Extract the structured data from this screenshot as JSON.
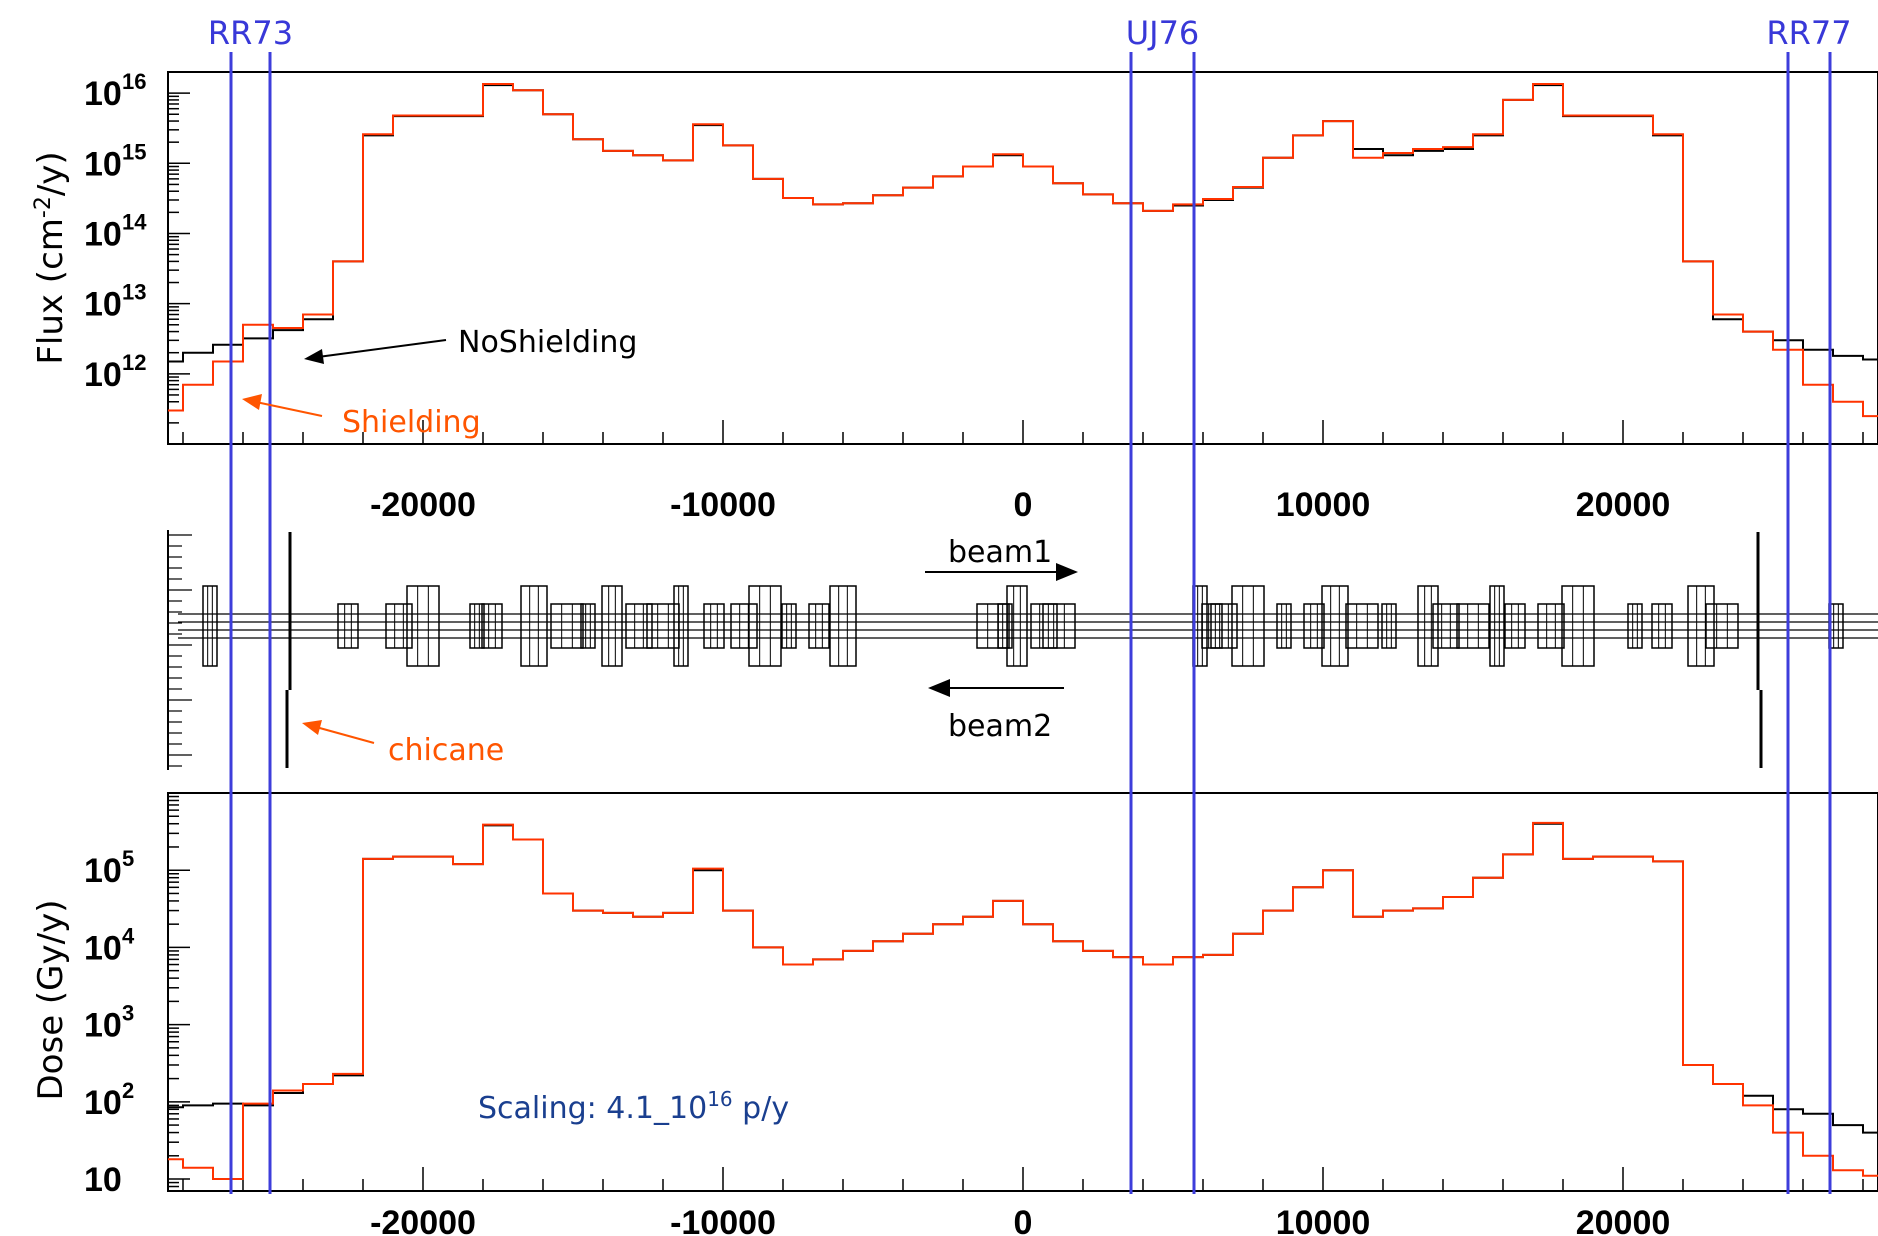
{
  "colors": {
    "no_shielding": "#000000",
    "shielding": "#ff3300",
    "region_lines": "#3d3ddb",
    "annotation_shielding": "#ff5500",
    "annotation_scaling": "#1a3f8f"
  },
  "regions": [
    {
      "label": "RR73",
      "x_from": -26400,
      "x_to": -25100
    },
    {
      "label": "UJ76",
      "x_from": 3600,
      "x_to": 5700
    },
    {
      "label": "RR77",
      "x_from": 25500,
      "x_to": 26900
    }
  ],
  "annotations": {
    "no_shielding": "NoShielding",
    "shielding": "Shielding",
    "chicane": "chicane",
    "beam1": "beam1",
    "beam2": "beam2",
    "scaling_prefix": "Scaling: 4.1_10",
    "scaling_exponent": "16",
    "scaling_suffix": " p/y"
  },
  "chart_data": [
    {
      "type": "line",
      "title": "",
      "ylabel": "Flux (cm",
      "ylabel_sup": "-2",
      "ylabel_end": "/y)",
      "xlabel": "",
      "yscale": "log",
      "xlim": [
        -28500,
        28500
      ],
      "ylim": [
        100000000000.0,
        2e+16
      ],
      "x_ticks": [
        -20000,
        -10000,
        0,
        10000,
        20000
      ],
      "y_ticks": [
        {
          "base": "10",
          "exp": "16",
          "value": 1e+16
        },
        {
          "base": "10",
          "exp": "15",
          "value": 1000000000000000.0
        },
        {
          "base": "10",
          "exp": "14",
          "value": 100000000000000.0
        },
        {
          "base": "10",
          "exp": "13",
          "value": 10000000000000.0
        },
        {
          "base": "10",
          "exp": "12",
          "value": 1000000000000.0
        }
      ],
      "series": [
        {
          "key": "no_shielding",
          "x": [
            -28500,
            -27500,
            -26500,
            -25500,
            -24500,
            -23500,
            -22500,
            -21500,
            -20500,
            -19500,
            -18500,
            -17500,
            -16500,
            -15500,
            -14500,
            -13500,
            -12500,
            -11500,
            -10500,
            -9500,
            -8500,
            -7500,
            -6500,
            -5500,
            -4500,
            -3500,
            -2500,
            -1500,
            -500,
            500,
            1500,
            2500,
            3500,
            4500,
            5500,
            6500,
            7500,
            8500,
            9500,
            10500,
            11500,
            12500,
            13500,
            14500,
            15500,
            16500,
            17500,
            18500,
            19500,
            20500,
            21500,
            22500,
            23500,
            24500,
            25500,
            26500,
            27500,
            28500
          ],
          "y": [
            1500000000000.0,
            2000000000000.0,
            2600000000000.0,
            3200000000000.0,
            4200000000000.0,
            6000000000000.0,
            40000000000000.0,
            2500000000000000.0,
            4700000000000000.0,
            4700000000000000.0,
            4700000000000000.0,
            1.3e+16,
            1.1e+16,
            5000000000000000.0,
            2200000000000000.0,
            1500000000000000.0,
            1300000000000000.0,
            1100000000000000.0,
            3500000000000000.0,
            1800000000000000.0,
            600000000000000.0,
            320000000000000.0,
            260000000000000.0,
            270000000000000.0,
            350000000000000.0,
            450000000000000.0,
            650000000000000.0,
            900000000000000.0,
            1300000000000000.0,
            900000000000000.0,
            520000000000000.0,
            360000000000000.0,
            270000000000000.0,
            210000000000000.0,
            250000000000000.0,
            300000000000000.0,
            450000000000000.0,
            1200000000000000.0,
            2500000000000000.0,
            4000000000000000.0,
            1600000000000000.0,
            1300000000000000.0,
            1500000000000000.0,
            1600000000000000.0,
            2500000000000000.0,
            8000000000000000.0,
            1.3e+16,
            4700000000000000.0,
            4700000000000000.0,
            4700000000000000.0,
            2500000000000000.0,
            40000000000000.0,
            6000000000000.0,
            4000000000000.0,
            3000000000000.0,
            2200000000000.0,
            1800000000000.0,
            1600000000000.0
          ]
        },
        {
          "key": "shielding",
          "x": [
            -28500,
            -27500,
            -26500,
            -25500,
            -24500,
            -23500,
            -22500,
            -21500,
            -20500,
            -19500,
            -18500,
            -17500,
            -16500,
            -15500,
            -14500,
            -13500,
            -12500,
            -11500,
            -10500,
            -9500,
            -8500,
            -7500,
            -6500,
            -5500,
            -4500,
            -3500,
            -2500,
            -1500,
            -500,
            500,
            1500,
            2500,
            3500,
            4500,
            5500,
            6500,
            7500,
            8500,
            9500,
            10500,
            11500,
            12500,
            13500,
            14500,
            15500,
            16500,
            17500,
            18500,
            19500,
            20500,
            21500,
            22500,
            23500,
            24500,
            25500,
            26500,
            27500,
            28500
          ],
          "y": [
            300000000000.0,
            700000000000.0,
            1500000000000.0,
            5000000000000.0,
            4500000000000.0,
            7000000000000.0,
            40000000000000.0,
            2600000000000000.0,
            4800000000000000.0,
            4800000000000000.0,
            4800000000000000.0,
            1.35e+16,
            1.1e+16,
            5000000000000000.0,
            2200000000000000.0,
            1500000000000000.0,
            1300000000000000.0,
            1100000000000000.0,
            3600000000000000.0,
            1800000000000000.0,
            600000000000000.0,
            320000000000000.0,
            260000000000000.0,
            270000000000000.0,
            350000000000000.0,
            450000000000000.0,
            650000000000000.0,
            900000000000000.0,
            1350000000000000.0,
            900000000000000.0,
            520000000000000.0,
            360000000000000.0,
            270000000000000.0,
            210000000000000.0,
            260000000000000.0,
            310000000000000.0,
            460000000000000.0,
            1200000000000000.0,
            2500000000000000.0,
            4000000000000000.0,
            1200000000000000.0,
            1400000000000000.0,
            1600000000000000.0,
            1700000000000000.0,
            2600000000000000.0,
            8000000000000000.0,
            1.35e+16,
            4800000000000000.0,
            4800000000000000.0,
            4800000000000000.0,
            2600000000000000.0,
            40000000000000.0,
            7000000000000.0,
            4000000000000.0,
            2200000000000.0,
            700000000000.0,
            400000000000.0,
            250000000000.0
          ]
        }
      ]
    },
    {
      "type": "diagram",
      "xlim": [
        -28500,
        28500
      ],
      "elements_x": [
        -27100,
        -22500,
        -20800,
        -20000,
        -18200,
        -17700,
        -16300,
        -15200,
        -14500,
        -13700,
        -12800,
        -12000,
        -11400,
        -10300,
        -9300,
        -8600,
        -7800,
        -6800,
        -6000,
        -1000,
        -600,
        -200,
        700,
        1200,
        5900,
        6300,
        6700,
        7500,
        8700,
        9700,
        10400,
        11300,
        12200,
        13500,
        14100,
        15000,
        15800,
        16400,
        17600,
        18500,
        20400,
        21300,
        22600,
        23300,
        27100
      ]
    },
    {
      "type": "line",
      "title": "",
      "ylabel": "Dose (Gy/y)",
      "xlabel": "",
      "yscale": "log",
      "xlim": [
        -28500,
        28500
      ],
      "ylim": [
        7,
        1000000.0
      ],
      "x_ticks": [
        -20000,
        -10000,
        0,
        10000,
        20000
      ],
      "y_ticks": [
        {
          "base": "10",
          "exp": "5",
          "value": 100000.0
        },
        {
          "base": "10",
          "exp": "4",
          "value": 10000.0
        },
        {
          "base": "10",
          "exp": "3",
          "value": 1000.0
        },
        {
          "base": "10",
          "exp": "2",
          "value": 100.0
        },
        {
          "base": "10",
          "exp": "",
          "value": 10
        }
      ],
      "series": [
        {
          "key": "no_shielding",
          "x": [
            -28500,
            -27500,
            -26500,
            -25500,
            -24500,
            -23500,
            -22500,
            -21500,
            -20500,
            -19500,
            -18500,
            -17500,
            -16500,
            -15500,
            -14500,
            -13500,
            -12500,
            -11500,
            -10500,
            -9500,
            -8500,
            -7500,
            -6500,
            -5500,
            -4500,
            -3500,
            -2500,
            -1500,
            -500,
            500,
            1500,
            2500,
            3500,
            4500,
            5500,
            6500,
            7500,
            8500,
            9500,
            10500,
            11500,
            12500,
            13500,
            14500,
            15500,
            16500,
            17500,
            18500,
            19500,
            20500,
            21500,
            22500,
            23500,
            24500,
            25500,
            26500,
            27500,
            28500
          ],
          "y": [
            85,
            90,
            95,
            90,
            130,
            170,
            220,
            140000.0,
            150000.0,
            150000.0,
            120000.0,
            380000.0,
            250000.0,
            50000.0,
            30000.0,
            28000.0,
            25000.0,
            28000.0,
            100000.0,
            30000.0,
            10000.0,
            6000.0,
            7000.0,
            9000.0,
            12000.0,
            15000.0,
            20000.0,
            25000.0,
            40000.0,
            20000.0,
            12000.0,
            9000.0,
            7500.0,
            6000.0,
            7500.0,
            8000.0,
            15000.0,
            30000.0,
            60000.0,
            100000.0,
            25000.0,
            30000.0,
            32000.0,
            45000.0,
            80000.0,
            160000.0,
            400000.0,
            140000.0,
            150000.0,
            150000.0,
            130000.0,
            300,
            170,
            120,
            80,
            70,
            50,
            40
          ]
        },
        {
          "key": "shielding",
          "x": [
            -28500,
            -27500,
            -26500,
            -25500,
            -24500,
            -23500,
            -22500,
            -21500,
            -20500,
            -19500,
            -18500,
            -17500,
            -16500,
            -15500,
            -14500,
            -13500,
            -12500,
            -11500,
            -10500,
            -9500,
            -8500,
            -7500,
            -6500,
            -5500,
            -4500,
            -3500,
            -2500,
            -1500,
            -500,
            500,
            1500,
            2500,
            3500,
            4500,
            5500,
            6500,
            7500,
            8500,
            9500,
            10500,
            11500,
            12500,
            13500,
            14500,
            15500,
            16500,
            17500,
            18500,
            19500,
            20500,
            21500,
            22500,
            23500,
            24500,
            25500,
            26500,
            27500,
            28500
          ],
          "y": [
            18,
            14,
            10,
            95,
            140,
            170,
            230,
            140000.0,
            150000.0,
            150000.0,
            120000.0,
            390000.0,
            250000.0,
            50000.0,
            30000.0,
            28000.0,
            25000.0,
            28000.0,
            105000.0,
            30000.0,
            10000.0,
            6000.0,
            7000.0,
            9000.0,
            12000.0,
            15000.0,
            20000.0,
            25000.0,
            40000.0,
            20000.0,
            12000.0,
            9000.0,
            7500.0,
            6000.0,
            7500.0,
            8000.0,
            15000.0,
            30000.0,
            60000.0,
            100000.0,
            25000.0,
            30000.0,
            32000.0,
            45000.0,
            80000.0,
            160000.0,
            410000.0,
            140000.0,
            150000.0,
            150000.0,
            130000.0,
            300,
            170,
            90,
            40,
            20,
            13,
            11
          ]
        }
      ]
    }
  ]
}
